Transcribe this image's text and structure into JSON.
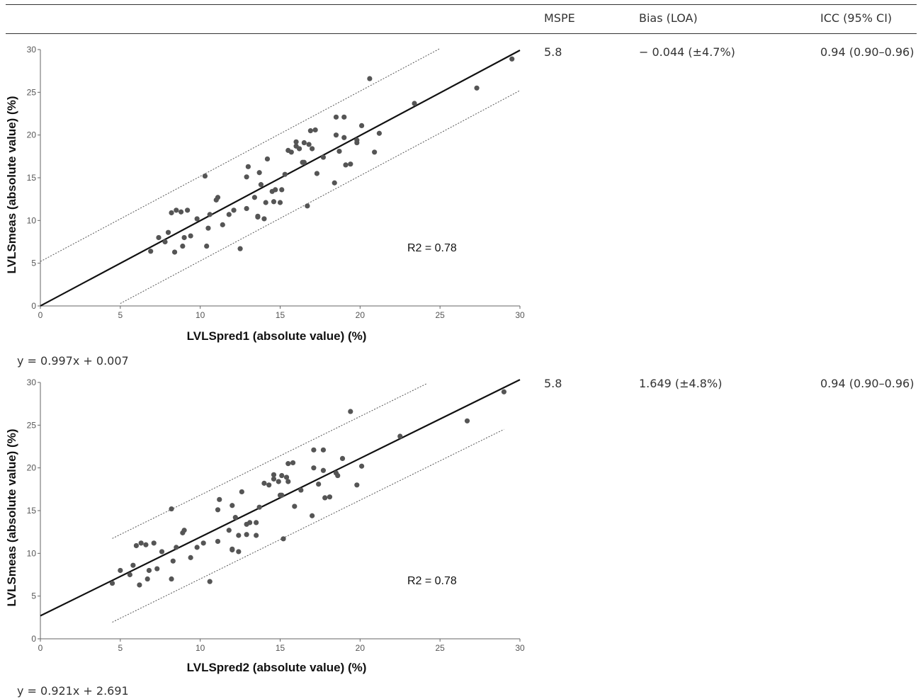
{
  "table": {
    "headers": {
      "mspe": "MSPE",
      "bias": "Bias (LOA)",
      "icc": "ICC (95% CI)"
    },
    "rows": [
      {
        "mspe": "5.8",
        "bias": "− 0.044 (±4.7%)",
        "icc": "0.94 (0.90–0.96)",
        "equation": "y = 0.997x + 0.007"
      },
      {
        "mspe": "5.8",
        "bias": "1.649 (±4.8%)",
        "icc": "0.94 (0.90–0.96)",
        "equation": "y = 0.921x + 2.691"
      }
    ]
  },
  "chart_data": [
    {
      "type": "scatter",
      "xlabel": "LVLSpred1 (absolute value) (%)",
      "ylabel": "LVLSmeas (absolute value) (%)",
      "xlim": [
        0,
        30
      ],
      "ylim": [
        0,
        30
      ],
      "xticks": [
        "0",
        "5",
        "10",
        "15",
        "20",
        "25",
        "30"
      ],
      "yticks": [
        "0",
        "5",
        "10",
        "15",
        "20",
        "25",
        "30"
      ],
      "annotation": "R2 = 0.78",
      "fit_line": {
        "slope": 0.997,
        "intercept": 0.007,
        "x_range": [
          0,
          30
        ]
      },
      "loa_upper": {
        "slope": 0.997,
        "intercept": 5.2,
        "x_range": [
          0,
          25
        ]
      },
      "loa_lower": {
        "slope": 0.997,
        "intercept": -4.7,
        "x_range": [
          5,
          30
        ]
      },
      "points": [
        [
          6.9,
          6.4
        ],
        [
          7.4,
          8.0
        ],
        [
          7.8,
          7.5
        ],
        [
          8.0,
          8.6
        ],
        [
          8.2,
          10.9
        ],
        [
          8.4,
          6.3
        ],
        [
          8.5,
          11.2
        ],
        [
          8.8,
          11.0
        ],
        [
          8.9,
          7.0
        ],
        [
          9.0,
          8.0
        ],
        [
          9.2,
          11.2
        ],
        [
          9.4,
          8.2
        ],
        [
          9.8,
          10.2
        ],
        [
          10.3,
          15.2
        ],
        [
          10.4,
          7.0
        ],
        [
          10.5,
          9.1
        ],
        [
          10.6,
          10.7
        ],
        [
          11.0,
          12.4
        ],
        [
          11.1,
          12.7
        ],
        [
          11.4,
          9.5
        ],
        [
          11.8,
          10.7
        ],
        [
          12.1,
          11.2
        ],
        [
          12.5,
          6.7
        ],
        [
          12.9,
          11.4
        ],
        [
          12.9,
          15.1
        ],
        [
          13.0,
          16.3
        ],
        [
          13.4,
          12.7
        ],
        [
          13.6,
          10.4
        ],
        [
          13.6,
          10.5
        ],
        [
          13.7,
          15.6
        ],
        [
          13.8,
          14.2
        ],
        [
          14.0,
          10.2
        ],
        [
          14.1,
          12.1
        ],
        [
          14.2,
          17.2
        ],
        [
          14.5,
          13.4
        ],
        [
          14.6,
          12.2
        ],
        [
          14.7,
          13.6
        ],
        [
          15.0,
          12.1
        ],
        [
          15.1,
          13.6
        ],
        [
          15.3,
          15.4
        ],
        [
          15.5,
          18.2
        ],
        [
          15.7,
          18.0
        ],
        [
          16.0,
          19.2
        ],
        [
          16.0,
          18.7
        ],
        [
          16.2,
          18.4
        ],
        [
          16.4,
          16.8
        ],
        [
          16.5,
          16.8
        ],
        [
          16.5,
          19.1
        ],
        [
          16.7,
          11.7
        ],
        [
          16.8,
          18.9
        ],
        [
          17.0,
          18.4
        ],
        [
          16.9,
          20.5
        ],
        [
          17.2,
          20.6
        ],
        [
          17.3,
          15.5
        ],
        [
          17.7,
          17.4
        ],
        [
          18.4,
          14.4
        ],
        [
          18.5,
          22.1
        ],
        [
          18.5,
          20.0
        ],
        [
          18.7,
          18.1
        ],
        [
          19.0,
          22.1
        ],
        [
          19.0,
          19.7
        ],
        [
          19.1,
          16.5
        ],
        [
          19.4,
          16.6
        ],
        [
          19.8,
          19.4
        ],
        [
          19.8,
          19.1
        ],
        [
          20.1,
          21.1
        ],
        [
          20.6,
          26.6
        ],
        [
          20.9,
          18.0
        ],
        [
          21.2,
          20.2
        ],
        [
          23.4,
          23.7
        ],
        [
          27.3,
          25.5
        ],
        [
          29.5,
          28.9
        ]
      ]
    },
    {
      "type": "scatter",
      "xlabel": "LVLSpred2 (absolute value) (%)",
      "ylabel": "LVLSmeas (absolute value) (%)",
      "xlim": [
        0,
        30
      ],
      "ylim": [
        0,
        30
      ],
      "xticks": [
        "0",
        "5",
        "10",
        "15",
        "20",
        "25",
        "30"
      ],
      "yticks": [
        "0",
        "5",
        "10",
        "15",
        "20",
        "25",
        "30"
      ],
      "annotation": "R2 = 0.78",
      "fit_line": {
        "slope": 0.921,
        "intercept": 2.691,
        "x_range": [
          0,
          30
        ]
      },
      "loa_upper": {
        "slope": 0.921,
        "intercept": 7.6,
        "x_range": [
          4.5,
          24.2
        ]
      },
      "loa_lower": {
        "slope": 0.921,
        "intercept": -2.2,
        "x_range": [
          4.5,
          29.0
        ]
      },
      "points": [
        [
          4.5,
          6.5
        ],
        [
          5.0,
          8.0
        ],
        [
          5.6,
          7.5
        ],
        [
          5.8,
          8.6
        ],
        [
          6.0,
          10.9
        ],
        [
          6.2,
          6.3
        ],
        [
          6.3,
          11.2
        ],
        [
          6.6,
          11.0
        ],
        [
          6.7,
          7.0
        ],
        [
          6.8,
          8.0
        ],
        [
          7.1,
          11.2
        ],
        [
          7.3,
          8.2
        ],
        [
          7.6,
          10.2
        ],
        [
          8.2,
          15.2
        ],
        [
          8.2,
          7.0
        ],
        [
          8.3,
          9.1
        ],
        [
          8.5,
          10.7
        ],
        [
          8.9,
          12.4
        ],
        [
          9.0,
          12.7
        ],
        [
          9.4,
          9.5
        ],
        [
          9.8,
          10.7
        ],
        [
          10.2,
          11.2
        ],
        [
          10.6,
          6.7
        ],
        [
          11.1,
          11.4
        ],
        [
          11.1,
          15.1
        ],
        [
          11.2,
          16.3
        ],
        [
          11.8,
          12.7
        ],
        [
          12.0,
          10.4
        ],
        [
          12.0,
          10.5
        ],
        [
          12.0,
          15.6
        ],
        [
          12.2,
          14.2
        ],
        [
          12.4,
          10.2
        ],
        [
          12.4,
          12.1
        ],
        [
          12.6,
          17.2
        ],
        [
          12.9,
          13.4
        ],
        [
          12.9,
          12.2
        ],
        [
          13.1,
          13.6
        ],
        [
          13.5,
          12.1
        ],
        [
          13.5,
          13.6
        ],
        [
          13.7,
          15.4
        ],
        [
          14.0,
          18.2
        ],
        [
          14.3,
          18.0
        ],
        [
          14.6,
          19.2
        ],
        [
          14.6,
          18.7
        ],
        [
          14.9,
          18.4
        ],
        [
          15.0,
          16.8
        ],
        [
          15.1,
          16.8
        ],
        [
          15.1,
          19.1
        ],
        [
          15.2,
          11.7
        ],
        [
          15.4,
          18.9
        ],
        [
          15.5,
          18.4
        ],
        [
          15.5,
          20.5
        ],
        [
          15.8,
          20.6
        ],
        [
          15.9,
          15.5
        ],
        [
          16.3,
          17.4
        ],
        [
          17.0,
          14.4
        ],
        [
          17.1,
          22.1
        ],
        [
          17.1,
          20.0
        ],
        [
          17.4,
          18.1
        ],
        [
          17.7,
          22.1
        ],
        [
          17.7,
          19.7
        ],
        [
          17.8,
          16.5
        ],
        [
          18.1,
          16.6
        ],
        [
          18.5,
          19.4
        ],
        [
          18.6,
          19.1
        ],
        [
          18.9,
          21.1
        ],
        [
          19.4,
          26.6
        ],
        [
          19.8,
          18.0
        ],
        [
          20.1,
          20.2
        ],
        [
          22.5,
          23.7
        ],
        [
          26.7,
          25.5
        ],
        [
          29.0,
          28.9
        ]
      ]
    }
  ]
}
